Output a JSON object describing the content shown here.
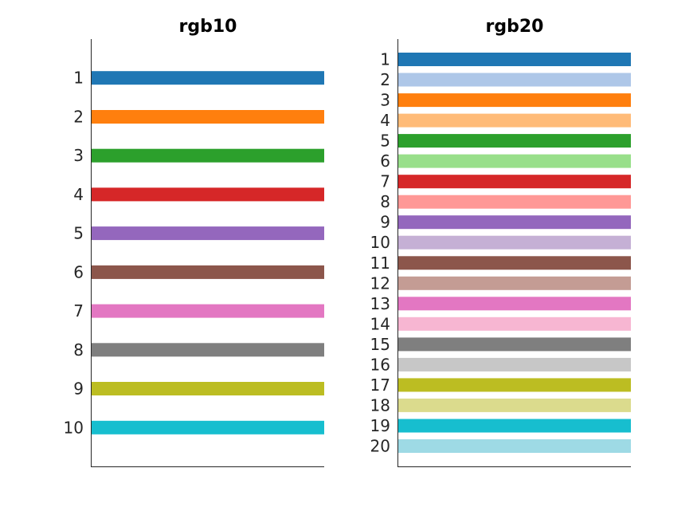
{
  "chart_data": [
    {
      "type": "bar",
      "orientation": "horizontal",
      "title": "rgb10",
      "categories": [
        "1",
        "2",
        "3",
        "4",
        "5",
        "6",
        "7",
        "8",
        "9",
        "10"
      ],
      "colors": [
        "#1f77b4",
        "#ff7f0e",
        "#2ca02c",
        "#d62728",
        "#9467bd",
        "#8c564b",
        "#e377c2",
        "#7f7f7f",
        "#bcbd22",
        "#17becf"
      ],
      "ylim": [
        0,
        11
      ],
      "grid": false
    },
    {
      "type": "bar",
      "orientation": "horizontal",
      "title": "rgb20",
      "categories": [
        "1",
        "2",
        "3",
        "4",
        "5",
        "6",
        "7",
        "8",
        "9",
        "10",
        "11",
        "12",
        "13",
        "14",
        "15",
        "16",
        "17",
        "18",
        "19",
        "20"
      ],
      "colors": [
        "#1f77b4",
        "#aec7e8",
        "#ff7f0e",
        "#ffbb78",
        "#2ca02c",
        "#98df8a",
        "#d62728",
        "#ff9896",
        "#9467bd",
        "#c5b0d5",
        "#8c564b",
        "#c49c94",
        "#e377c2",
        "#f7b6d2",
        "#7f7f7f",
        "#c7c7c7",
        "#bcbd22",
        "#dbdb8d",
        "#17becf",
        "#9edae5"
      ],
      "ylim": [
        0,
        21
      ],
      "grid": false
    }
  ]
}
